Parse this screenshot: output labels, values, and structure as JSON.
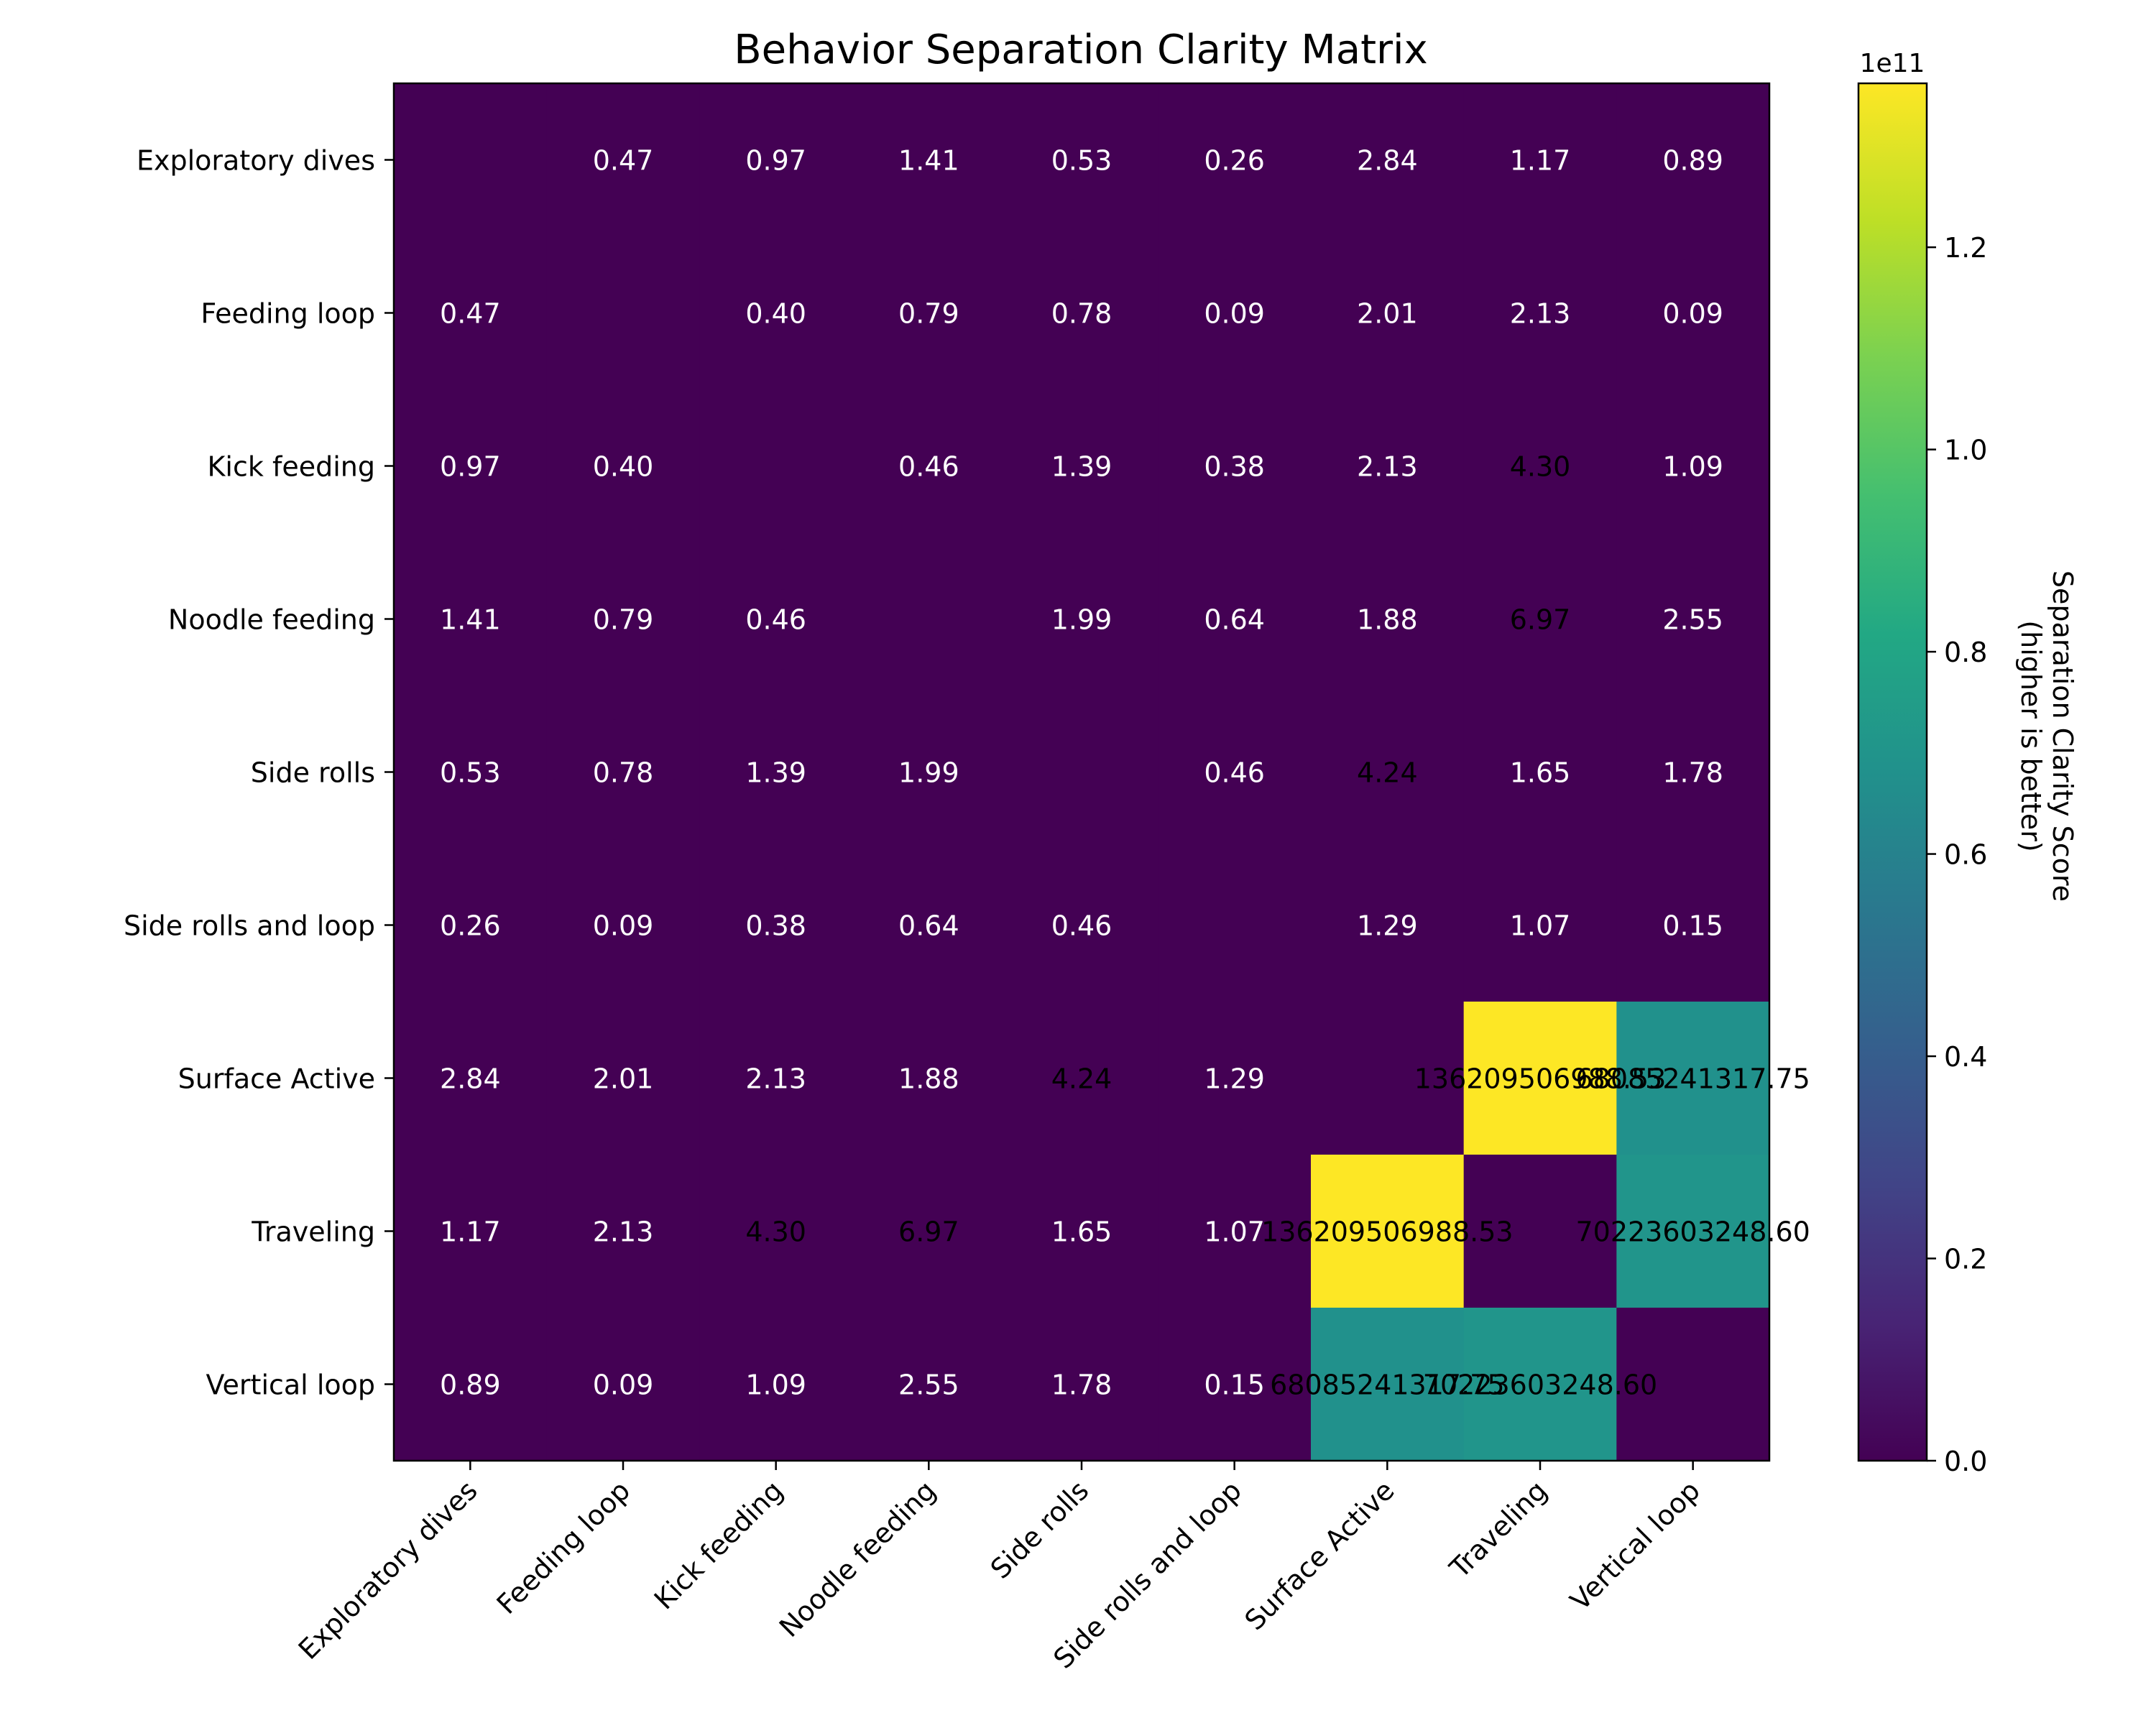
{
  "chart_data": {
    "type": "heatmap",
    "title": "Behavior Separation Clarity Matrix",
    "row_labels": [
      "Exploratory dives",
      "Feeding loop",
      "Kick feeding",
      "Noodle feeding",
      "Side rolls",
      "Side rolls and loop",
      "Surface Active",
      "Traveling",
      "Vertical loop"
    ],
    "col_labels": [
      "Exploratory dives",
      "Feeding loop",
      "Kick feeding",
      "Noodle feeding",
      "Side rolls",
      "Side rolls and loop",
      "Surface Active",
      "Traveling",
      "Vertical loop"
    ],
    "values": [
      [
        null,
        0.47,
        0.97,
        1.41,
        0.53,
        0.26,
        2.84,
        1.17,
        0.89
      ],
      [
        0.47,
        null,
        0.4,
        0.79,
        0.78,
        0.09,
        2.01,
        2.13,
        0.09
      ],
      [
        0.97,
        0.4,
        null,
        0.46,
        1.39,
        0.38,
        2.13,
        4.3,
        1.09
      ],
      [
        1.41,
        0.79,
        0.46,
        null,
        1.99,
        0.64,
        1.88,
        6.97,
        2.55
      ],
      [
        0.53,
        0.78,
        1.39,
        1.99,
        null,
        0.46,
        4.24,
        1.65,
        1.78
      ],
      [
        0.26,
        0.09,
        0.38,
        0.64,
        0.46,
        null,
        1.29,
        1.07,
        0.15
      ],
      [
        2.84,
        2.01,
        2.13,
        1.88,
        4.24,
        1.29,
        null,
        136209506988.53,
        68085241317.75
      ],
      [
        1.17,
        2.13,
        4.3,
        6.97,
        1.65,
        1.07,
        136209506988.53,
        null,
        70223603248.6
      ],
      [
        0.89,
        0.09,
        1.09,
        2.55,
        1.78,
        0.15,
        68085241317.75,
        70223603248.6,
        null
      ]
    ],
    "cell_labels": [
      [
        "",
        "0.47",
        "0.97",
        "1.41",
        "0.53",
        "0.26",
        "2.84",
        "1.17",
        "0.89"
      ],
      [
        "0.47",
        "",
        "0.40",
        "0.79",
        "0.78",
        "0.09",
        "2.01",
        "2.13",
        "0.09"
      ],
      [
        "0.97",
        "0.40",
        "",
        "0.46",
        "1.39",
        "0.38",
        "2.13",
        "4.30",
        "1.09"
      ],
      [
        "1.41",
        "0.79",
        "0.46",
        "",
        "1.99",
        "0.64",
        "1.88",
        "6.97",
        "2.55"
      ],
      [
        "0.53",
        "0.78",
        "1.39",
        "1.99",
        "",
        "0.46",
        "4.24",
        "1.65",
        "1.78"
      ],
      [
        "0.26",
        "0.09",
        "0.38",
        "0.64",
        "0.46",
        "",
        "1.29",
        "1.07",
        "0.15"
      ],
      [
        "2.84",
        "2.01",
        "2.13",
        "1.88",
        "4.24",
        "1.29",
        "",
        "136209506988.53",
        "68085241317.75"
      ],
      [
        "1.17",
        "2.13",
        "4.30",
        "6.97",
        "1.65",
        "1.07",
        "136209506988.53",
        "",
        "70223603248.60"
      ],
      [
        "0.89",
        "0.09",
        "1.09",
        "2.55",
        "1.78",
        "0.15",
        "68085241317.75",
        "70223603248.60",
        ""
      ]
    ],
    "colorbar": {
      "label_lines": [
        "Separation Clarity Score",
        "(higher is better)"
      ],
      "exponent_label": "1e11",
      "ticks": [
        0,
        0.2,
        0.4,
        0.6,
        0.8,
        1.0,
        1.2
      ],
      "tick_labels": [
        "0.0",
        "0.2",
        "0.4",
        "0.6",
        "0.8",
        "1.0",
        "1.2"
      ],
      "range": [
        0,
        1.3620950698853
      ]
    },
    "colormap": "viridis",
    "grid": false
  }
}
